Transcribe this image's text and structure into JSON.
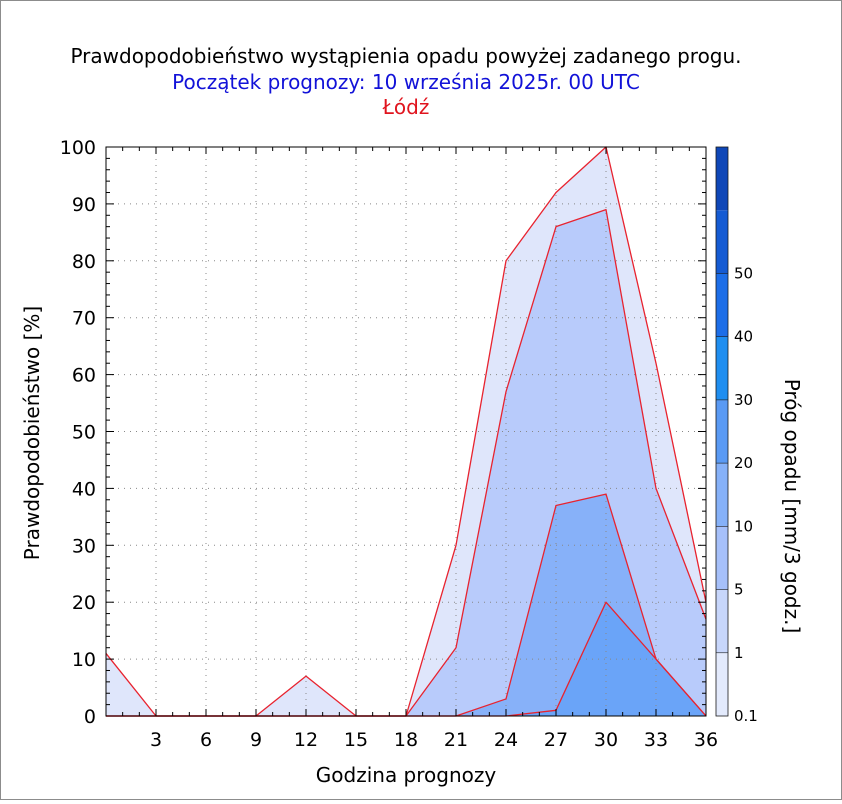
{
  "chart_data": {
    "type": "area",
    "title": "Prawdopodobieństwo wystąpienia opadu powyżej zadanego progu.",
    "subtitle": "Początek prognozy: 10 września 2025r. 00 UTC",
    "location": "Łódź",
    "xlabel": "Godzina prognozy",
    "ylabel": "Prawdopodobieństwo [%]",
    "colorbar_label": "Próg opadu [mm/3 godz.]",
    "xlim": [
      0,
      36
    ],
    "ylim": [
      0,
      100
    ],
    "x_ticks": [
      3,
      6,
      9,
      12,
      15,
      18,
      21,
      24,
      27,
      30,
      33,
      36
    ],
    "y_ticks": [
      0,
      10,
      20,
      30,
      40,
      50,
      60,
      70,
      80,
      90,
      100
    ],
    "x": [
      0,
      3,
      6,
      9,
      12,
      15,
      18,
      21,
      24,
      27,
      30,
      33,
      36
    ],
    "series": [
      {
        "name": "0.1",
        "color": "#dfe6fb",
        "values": [
          11,
          0,
          0,
          0,
          7,
          0,
          0,
          30,
          80,
          92,
          100,
          62,
          20
        ]
      },
      {
        "name": "1",
        "color": "#b8cbfb",
        "values": [
          0,
          0,
          0,
          0,
          0,
          0,
          0,
          12,
          57,
          86,
          89,
          40,
          17
        ]
      },
      {
        "name": "5",
        "color": "#87b1f9",
        "values": [
          0,
          0,
          0,
          0,
          0,
          0,
          0,
          0,
          3,
          37,
          39,
          10,
          0
        ]
      },
      {
        "name": "10",
        "color": "#6aa4f8",
        "values": [
          0,
          0,
          0,
          0,
          0,
          0,
          0,
          0,
          0,
          1,
          20,
          10,
          0
        ]
      }
    ],
    "colorbar": {
      "labels": [
        "0.1",
        "1",
        "5",
        "10",
        "20",
        "30",
        "40",
        "50"
      ],
      "colors": [
        "#e3eafc",
        "#c7d6fb",
        "#a6c0fa",
        "#86b1f8",
        "#5a9af4",
        "#1f8ef0",
        "#1d6ee8",
        "#155bd3",
        "#0f47b8"
      ]
    }
  }
}
